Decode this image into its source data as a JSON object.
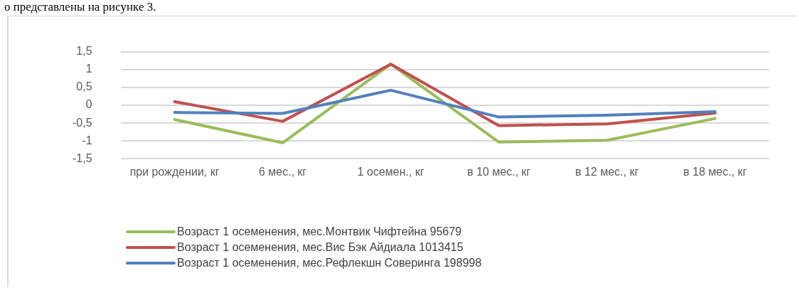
{
  "chart_data": {
    "type": "line",
    "annotations": [
      "о представлены на рисунке 3."
    ],
    "categories": [
      "при рождении, кг",
      "6 мес., кг",
      "1 осемен., кг",
      "в 10 мес., кг",
      "в 12 мес., кг",
      "в 18 мес., кг"
    ],
    "series": [
      {
        "name": "Возраст 1 осеменения, мес.Монтвик Чифтейна 95679",
        "color": "#9bbb59",
        "values": [
          -0.4,
          -1.05,
          1.15,
          -1.03,
          -0.98,
          -0.37
        ]
      },
      {
        "name": "Возраст 1 осеменения, мес.Вис Бэк Айдиала 1013415",
        "color": "#c0504d",
        "values": [
          0.1,
          -0.45,
          1.15,
          -0.57,
          -0.52,
          -0.22
        ]
      },
      {
        "name": "Возраст 1 осеменения, мес.Рефлекшн Соверинга 198998",
        "color": "#4f81bd",
        "values": [
          -0.2,
          -0.23,
          0.42,
          -0.33,
          -0.28,
          -0.18
        ]
      }
    ],
    "ylim": [
      -1.5,
      1.5
    ],
    "yticks": [
      {
        "value": -1.5,
        "label": "-1,5"
      },
      {
        "value": -1,
        "label": "-1"
      },
      {
        "value": -0.5,
        "label": "-0,5"
      },
      {
        "value": 0,
        "label": "0"
      },
      {
        "value": 0.5,
        "label": "0,5"
      },
      {
        "value": 1,
        "label": "1"
      },
      {
        "value": 1.5,
        "label": "1,5"
      }
    ],
    "grid": "y",
    "legend": "bottom",
    "marker": "none",
    "line_style": "solid"
  }
}
